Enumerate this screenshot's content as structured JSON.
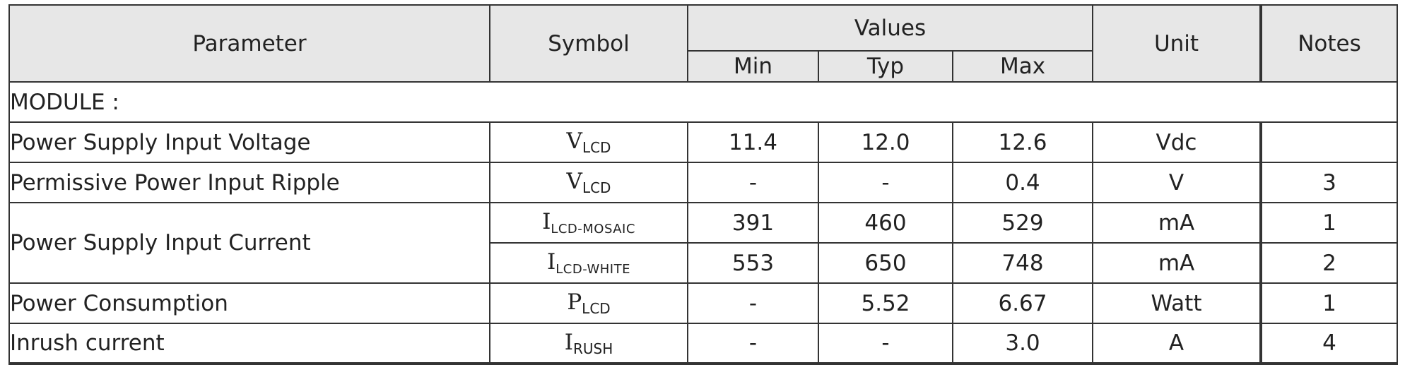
{
  "headers": {
    "parameter": "Parameter",
    "symbol": "Symbol",
    "values": "Values",
    "min": "Min",
    "typ": "Typ",
    "max": "Max",
    "unit": "Unit",
    "notes": "Notes"
  },
  "section_label": "MODULE :",
  "rows": [
    {
      "parameter": "Power Supply Input Voltage",
      "sym": "V",
      "sub": "LCD",
      "min": "11.4",
      "typ": "12.0",
      "max": "12.6",
      "unit": "Vdc",
      "notes": ""
    },
    {
      "parameter": "Permissive Power Input Ripple",
      "sym": "V",
      "sub": "LCD",
      "min": "-",
      "typ": "-",
      "max": "0.4",
      "unit": "V",
      "notes": "3"
    },
    {
      "parameter": "Power Supply Input Current",
      "sym": "I",
      "sub": "LCD-MOSAIC",
      "min": "391",
      "typ": "460",
      "max": "529",
      "unit": "mA",
      "notes": "1"
    },
    {
      "sym": "I",
      "sub": "LCD-WHITE",
      "min": "553",
      "typ": "650",
      "max": "748",
      "unit": "mA",
      "notes": "2"
    },
    {
      "parameter": "Power Consumption",
      "sym": "P",
      "sub": "LCD",
      "min": "-",
      "typ": "5.52",
      "max": "6.67",
      "unit": "Watt",
      "notes": "1"
    },
    {
      "parameter": "Inrush current",
      "sym": "I",
      "sub": "RUSH",
      "min": "-",
      "typ": "-",
      "max": "3.0",
      "unit": "A",
      "notes": "4"
    }
  ]
}
